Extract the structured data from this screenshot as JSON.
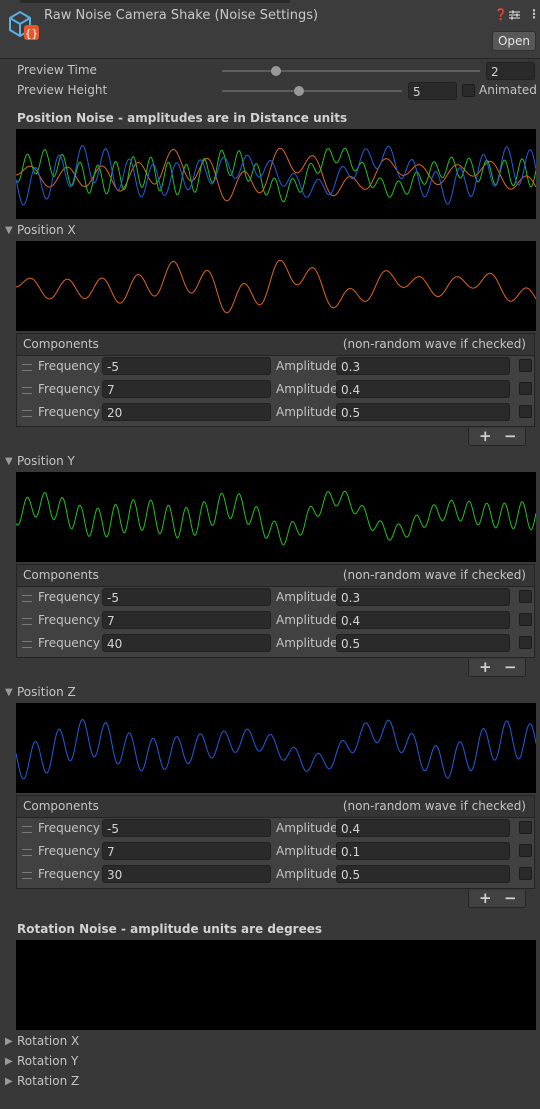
{
  "header": {
    "title": "Raw Noise Camera Shake (Noise Settings)",
    "open_label": "Open",
    "icons": [
      "help-icon",
      "preset-icon",
      "more-icon"
    ]
  },
  "preview": {
    "time_label": "Preview Time",
    "time_value": "2",
    "time_fraction": 0.21,
    "height_label": "Preview Height",
    "height_value": "5",
    "height_fraction": 0.43,
    "animated_label": "Animated"
  },
  "position": {
    "title": "Position Noise - amplitudes are in Distance units",
    "axes": [
      {
        "label": "Position X",
        "color": "#e0661a",
        "components": [
          {
            "frequency": "-5",
            "amplitude": "0.3"
          },
          {
            "frequency": "7",
            "amplitude": "0.4"
          },
          {
            "frequency": "20",
            "amplitude": "0.5"
          }
        ]
      },
      {
        "label": "Position Y",
        "color": "#1fc21f",
        "components": [
          {
            "frequency": "-5",
            "amplitude": "0.3"
          },
          {
            "frequency": "7",
            "amplitude": "0.4"
          },
          {
            "frequency": "40",
            "amplitude": "0.5"
          }
        ]
      },
      {
        "label": "Position Z",
        "color": "#1f5fe0",
        "components": [
          {
            "frequency": "-5",
            "amplitude": "0.4"
          },
          {
            "frequency": "7",
            "amplitude": "0.1"
          },
          {
            "frequency": "30",
            "amplitude": "0.5"
          }
        ]
      }
    ]
  },
  "components_label": "Components",
  "non_random_label": "(non-random wave if checked)",
  "frequency_label": "Frequency",
  "amplitude_label": "Amplitude",
  "plus_label": "+",
  "minus_label": "−",
  "rotation": {
    "title": "Rotation Noise - amplitude units are degrees",
    "axes": [
      "Rotation X",
      "Rotation Y",
      "Rotation Z"
    ]
  }
}
